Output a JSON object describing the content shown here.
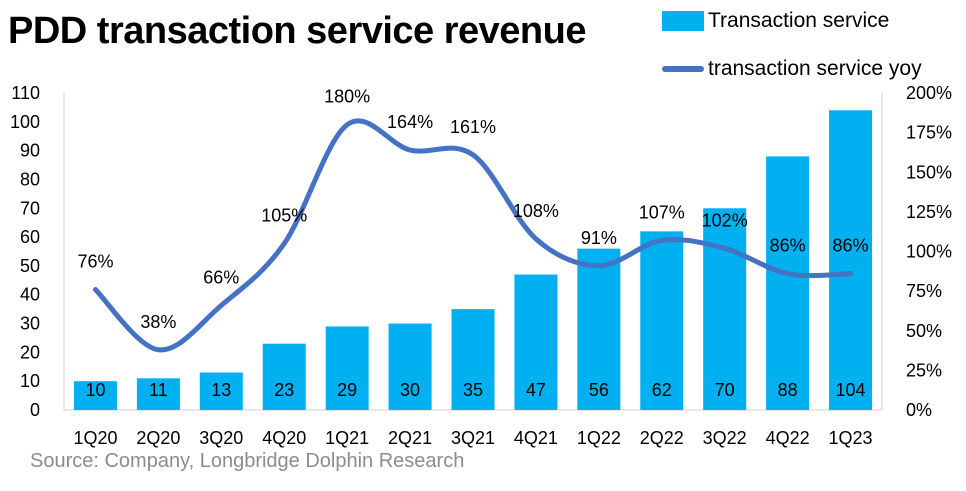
{
  "title": "PDD transaction service revenue",
  "source": "Source: Company, Longbridge Dolphin Research",
  "colors": {
    "bar": "#00b0f0",
    "line": "#4472c4"
  },
  "chart_data": {
    "type": "bar+line",
    "categories": [
      "1Q20",
      "2Q20",
      "3Q20",
      "4Q20",
      "1Q21",
      "2Q21",
      "3Q21",
      "4Q21",
      "1Q22",
      "2Q22",
      "3Q22",
      "4Q22",
      "1Q23"
    ],
    "series": [
      {
        "name": "Transaction service",
        "type": "bar",
        "axis": "left",
        "values": [
          10,
          11,
          13,
          23,
          29,
          30,
          35,
          47,
          56,
          62,
          70,
          88,
          104
        ]
      },
      {
        "name": "transaction service yoy",
        "type": "line",
        "axis": "right",
        "values": [
          76,
          38,
          66,
          105,
          180,
          164,
          161,
          108,
          91,
          107,
          102,
          86,
          86
        ],
        "labels": [
          "76%",
          "38%",
          "66%",
          "105%",
          "180%",
          "164%",
          "161%",
          "108%",
          "91%",
          "107%",
          "102%",
          "86%",
          "86%"
        ]
      }
    ],
    "ylim_left": [
      0,
      110
    ],
    "yticks_left": [
      "0",
      "10",
      "20",
      "30",
      "40",
      "50",
      "60",
      "70",
      "80",
      "90",
      "100",
      "110"
    ],
    "ylim_right": [
      0,
      200
    ],
    "yticks_right": [
      "0%",
      "25%",
      "50%",
      "75%",
      "100%",
      "125%",
      "150%",
      "175%",
      "200%"
    ],
    "grid": false,
    "legend_position": "top-right"
  }
}
